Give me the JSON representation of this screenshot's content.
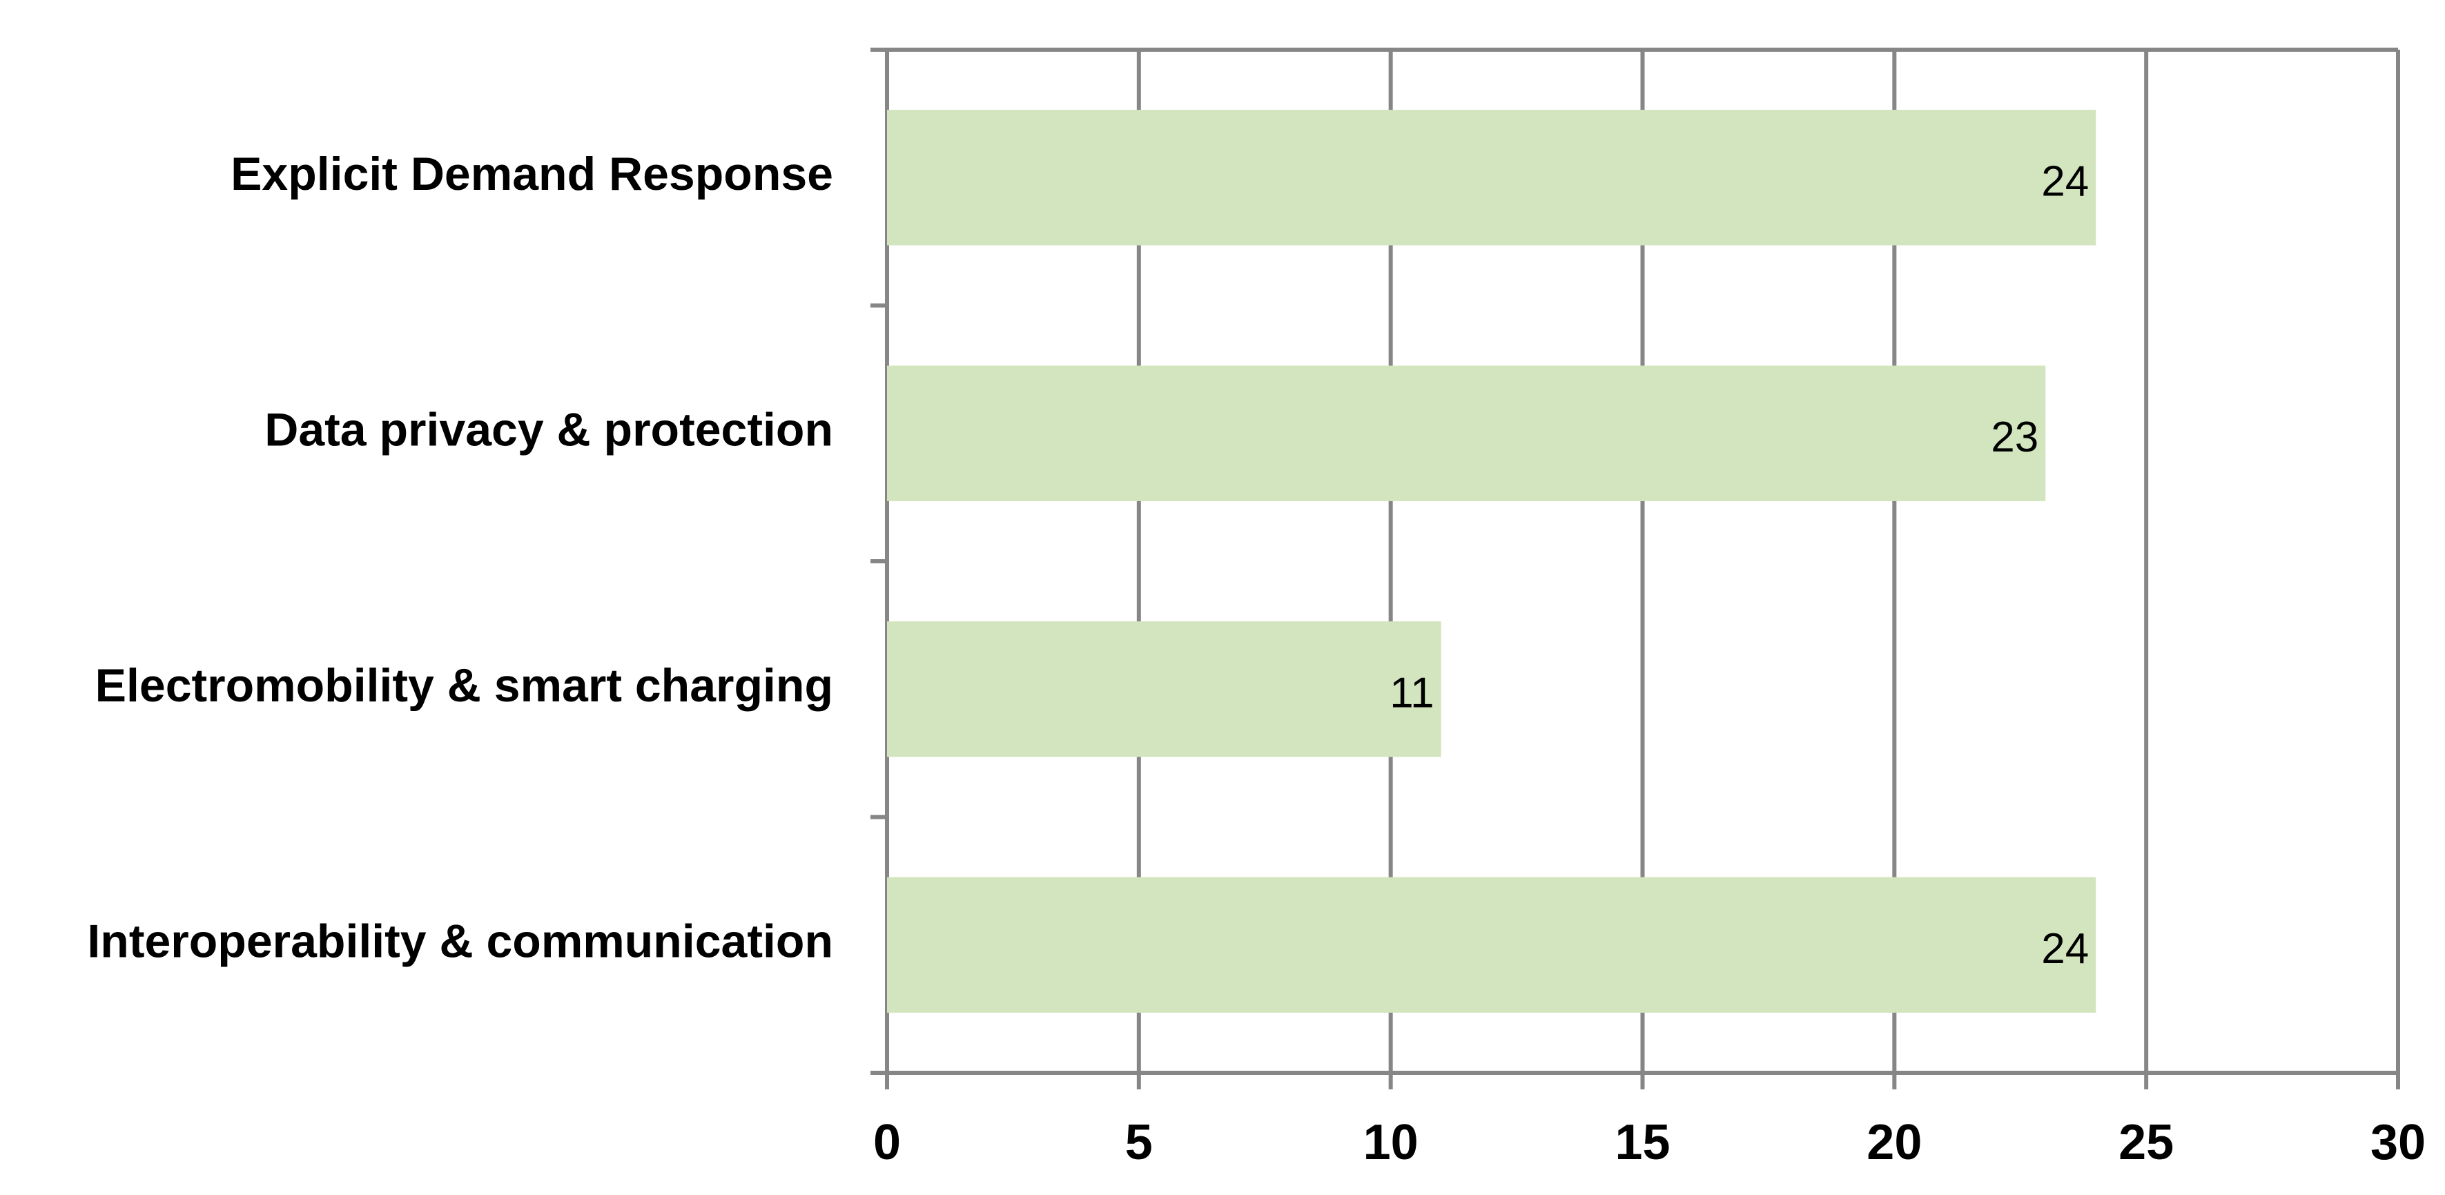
{
  "chart_data": {
    "type": "bar",
    "orientation": "horizontal",
    "categories": [
      "Explicit Demand Response",
      "Data privacy & protection",
      "Electromobility & smart charging",
      "Interoperability & communication"
    ],
    "values": [
      24,
      23,
      11,
      24
    ],
    "color": "#d3e5be",
    "xlim": [
      0,
      30
    ],
    "xticks": [
      0,
      5,
      10,
      15,
      20,
      25,
      30
    ],
    "grid": true
  }
}
